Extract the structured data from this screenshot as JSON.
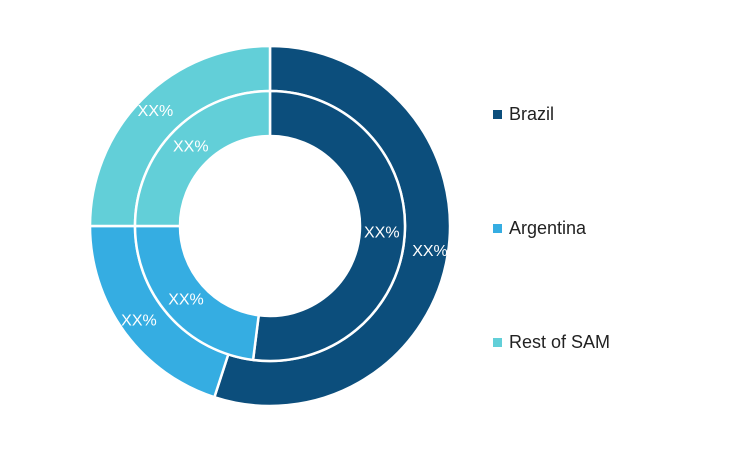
{
  "chart_data": {
    "type": "pie",
    "variant": "double-donut",
    "categories": [
      "Brazil",
      "Argentina",
      "Rest of SAM"
    ],
    "colors": [
      "#0c4e7c",
      "#35ade2",
      "#62cfd8"
    ],
    "series": [
      {
        "ring": "outer",
        "values": [
          55,
          20,
          25
        ],
        "labels": [
          "XX%",
          "XX%",
          "XX%"
        ]
      },
      {
        "ring": "inner",
        "values": [
          52,
          23,
          25
        ],
        "labels": [
          "XX%",
          "XX%",
          "XX%"
        ]
      }
    ],
    "legend_position": "right"
  },
  "legend": {
    "items": [
      {
        "label": "Brazil",
        "color": "#0c4e7c"
      },
      {
        "label": "Argentina",
        "color": "#35ade2"
      },
      {
        "label": "Rest of SAM",
        "color": "#62cfd8"
      }
    ]
  }
}
